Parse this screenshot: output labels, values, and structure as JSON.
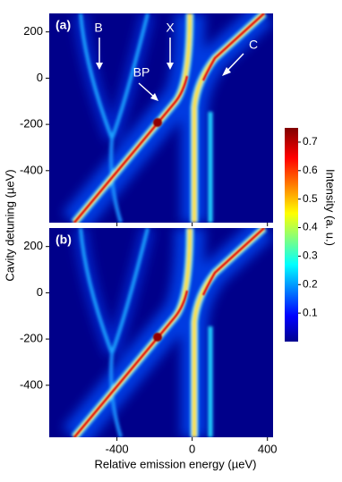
{
  "chart_data": {
    "type": "heatmap",
    "xlabel": "Relative emission energy (µeV)",
    "ylabel": "Cavity detuning (µeV)",
    "xlim": [
      -760,
      430
    ],
    "xticks": [
      -400,
      0,
      400
    ],
    "colorbar": {
      "label": "Intensity (a. u.)",
      "lim": [
        0,
        0.75
      ],
      "ticks": [
        0.1,
        0.2,
        0.3,
        0.4,
        0.5,
        0.6,
        0.7
      ]
    },
    "panels": [
      {
        "label": "(a)",
        "ylim": [
          -625,
          280
        ],
        "yticks": [
          -400,
          -200,
          0,
          200
        ],
        "annotations": [
          "B",
          "X",
          "BP",
          "C"
        ]
      },
      {
        "label": "(b)",
        "ylim": [
          -625,
          280
        ],
        "yticks": [
          -400,
          -200,
          0,
          200
        ]
      }
    ]
  }
}
